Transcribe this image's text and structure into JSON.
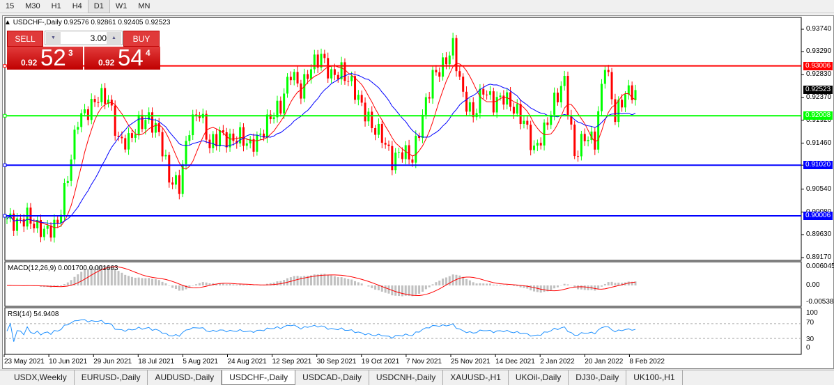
{
  "timeframes": [
    {
      "label": "15"
    },
    {
      "label": "M30"
    },
    {
      "label": "H1"
    },
    {
      "label": "H4"
    },
    {
      "label": "D1",
      "active": true
    },
    {
      "label": "W1"
    },
    {
      "label": "MN"
    }
  ],
  "chart": {
    "header": "USDCHF-,Daily  0.92576 0.92861 0.92405 0.92523"
  },
  "trade_panel": {
    "sell_label": "SELL",
    "buy_label": "BUY",
    "lot": "3.00",
    "sell_prefix": "0.92",
    "sell_big": "52",
    "sell_sup": "3",
    "buy_prefix": "0.92",
    "buy_big": "54",
    "buy_sup": "4"
  },
  "colors": {
    "bull": "#00ff00",
    "bear": "#ff0000",
    "ma_fast": "#ff0000",
    "ma_slow": "#0000ff",
    "rsi": "#1e90ff",
    "macd_hist": "#c0c0c0",
    "macd_signal": "#ff0000"
  },
  "chart_data": {
    "type": "candlestick",
    "symbol": "USDCHF-",
    "timeframe": "Daily",
    "price_axis": [
      "0.93740",
      "0.93290",
      "0.92830",
      "0.92370",
      "0.91920",
      "0.91460",
      "0.91020",
      "0.90540",
      "0.90080",
      "0.89630",
      "0.89170"
    ],
    "ylim": [
      0.8917,
      0.9374
    ],
    "date_labels": [
      "23 May 2021",
      "10 Jun 2021",
      "29 Jun 2021",
      "18 Jul 2021",
      "5 Aug 2021",
      "24 Aug 2021",
      "12 Sep 2021",
      "30 Sep 2021",
      "19 Oct 2021",
      "7 Nov 2021",
      "25 Nov 2021",
      "14 Dec 2021",
      "2 Jan 2022",
      "20 Jan 2022",
      "8 Feb 2022"
    ],
    "approx_closes": [
      0.8995,
      0.8985,
      0.9,
      0.8975,
      0.897,
      0.8985,
      0.908,
      0.9195,
      0.921,
      0.924,
      0.9235,
      0.915,
      0.915,
      0.9185,
      0.9195,
      0.9165,
      0.9075,
      0.906,
      0.918,
      0.921,
      0.914,
      0.9165,
      0.915,
      0.916,
      0.914,
      0.916,
      0.92,
      0.922,
      0.929,
      0.925,
      0.93,
      0.932,
      0.928,
      0.929,
      0.9265,
      0.922,
      0.918,
      0.916,
      0.911,
      0.913,
      0.9115,
      0.92,
      0.928,
      0.93,
      0.934,
      0.924,
      0.92,
      0.9255,
      0.9225,
      0.924,
      0.9215,
      0.919,
      0.913,
      0.917,
      0.923,
      0.927,
      0.912,
      0.916,
      0.915,
      0.931,
      0.92,
      0.9245,
      0.92523
    ],
    "current_price": {
      "label": "0.92523",
      "color": "#000000"
    },
    "hlines": [
      {
        "label": "0.93006",
        "price": 0.93006,
        "color": "#ff0000"
      },
      {
        "label": "0.92008",
        "price": 0.92008,
        "color": "#00ff00"
      },
      {
        "label": "0.91020",
        "price": 0.9102,
        "color": "#0000ff"
      },
      {
        "label": "0.90006",
        "price": 0.90006,
        "color": "#0000ff"
      }
    ],
    "macd": {
      "label": "MACD(12,26,9) 0.001700 0.001663",
      "axis": [
        "0.006045",
        "0.00",
        "-0.005383"
      ]
    },
    "rsi": {
      "label": "RSI(14) 54.9408",
      "axis": [
        "100",
        "70",
        "30",
        "0"
      ]
    }
  },
  "tabs": [
    {
      "label": "USDX,Weekly"
    },
    {
      "label": "EURUSD-,Daily"
    },
    {
      "label": "AUDUSD-,Daily"
    },
    {
      "label": "USDCHF-,Daily",
      "active": true
    },
    {
      "label": "USDCAD-,Daily"
    },
    {
      "label": "USDCNH-,Daily"
    },
    {
      "label": "XAUUSD-,H1"
    },
    {
      "label": "UKOil-,Daily"
    },
    {
      "label": "DJ30-,Daily"
    },
    {
      "label": "UK100-,H1"
    }
  ]
}
